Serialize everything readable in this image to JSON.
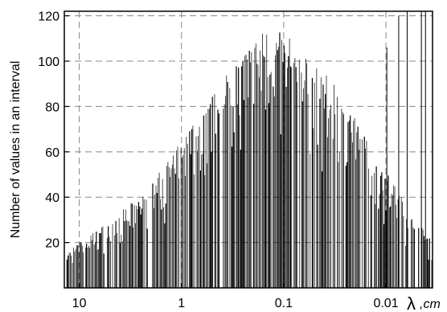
{
  "chart_data": {
    "type": "bar",
    "title": "",
    "xlabel": "λ, cm",
    "xlabel_symbol": "λ",
    "xlabel_unit": ",cm",
    "ylabel": "Number of values in an interval",
    "x_scale": "log",
    "x_reversed": true,
    "xlim": [
      14,
      0.0035
    ],
    "ylim": [
      0,
      122
    ],
    "x_ticks": [
      10,
      1,
      0.1,
      0.01
    ],
    "x_tick_labels": [
      "10",
      "1",
      "0.1",
      "0.01"
    ],
    "y_ticks": [
      20,
      40,
      60,
      80,
      100,
      120
    ],
    "y_tick_labels": [
      "20",
      "40",
      "60",
      "80",
      "100",
      "120"
    ],
    "grid": true,
    "grid_style": "dashed",
    "bar_color": "#000000",
    "envelope": {
      "x": [
        14,
        10,
        5,
        3,
        2,
        1.5,
        1,
        0.5,
        0.3,
        0.2,
        0.15,
        0.1,
        0.07,
        0.05,
        0.03,
        0.02,
        0.015,
        0.01,
        0.007,
        0.005,
        0.0035
      ],
      "y": [
        15,
        20,
        30,
        38,
        45,
        55,
        65,
        85,
        100,
        110,
        115,
        113,
        106,
        100,
        88,
        75,
        65,
        52,
        40,
        30,
        20
      ]
    },
    "outlier_spikes": [
      {
        "x": 0.0098,
        "y": 106
      },
      {
        "x": 0.0075,
        "y": 120
      },
      {
        "x": 0.0062,
        "y": 122
      },
      {
        "x": 0.0045,
        "y": 122
      },
      {
        "x": 0.0041,
        "y": 122
      }
    ]
  }
}
